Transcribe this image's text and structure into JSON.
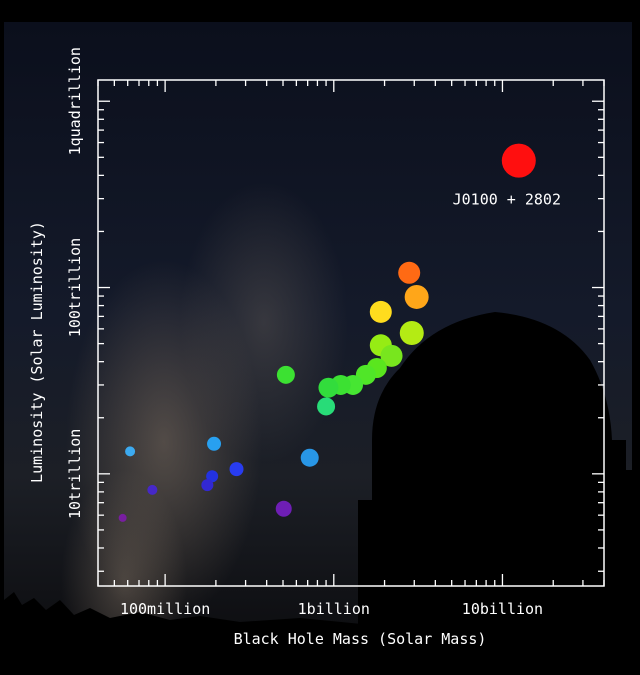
{
  "chart_data": {
    "type": "scatter",
    "xlabel": "Black Hole Mass (Solar Mass)",
    "ylabel": "Luminosity (Solar Luminosity)",
    "x_scale": "log",
    "y_scale": "log",
    "xlim": [
      40000000,
      40000000000
    ],
    "ylim": [
      2500000000000,
      1300000000000000
    ],
    "x_ticks": [
      {
        "value": 100000000,
        "label": "100million"
      },
      {
        "value": 1000000000,
        "label": "1billion"
      },
      {
        "value": 10000000000,
        "label": "10billion"
      }
    ],
    "y_ticks": [
      {
        "value": 10000000000000,
        "label": "10trillion"
      },
      {
        "value": 100000000000000,
        "label": "100trillion"
      },
      {
        "value": 1000000000000000,
        "label": "1quadrillion"
      }
    ],
    "annotations": [
      {
        "text": "J0100 + 2802",
        "x": 12500000000,
        "y": 480000000000000
      }
    ],
    "points": [
      {
        "x": 12500000000,
        "y": 480000000000000,
        "size": 17,
        "color": "#ff0f0f"
      },
      {
        "x": 2800000000,
        "y": 120000000000000,
        "size": 11,
        "color": "#ff6a14"
      },
      {
        "x": 3100000000,
        "y": 89000000000000,
        "size": 12,
        "color": "#ffa619"
      },
      {
        "x": 1900000000,
        "y": 74000000000000,
        "size": 11,
        "color": "#ffdc1e"
      },
      {
        "x": 2900000000,
        "y": 57000000000000,
        "size": 12,
        "color": "#b4eb14"
      },
      {
        "x": 1900000000,
        "y": 49000000000000,
        "size": 11,
        "color": "#96ec14"
      },
      {
        "x": 2200000000,
        "y": 43000000000000,
        "size": 11,
        "color": "#78e61e"
      },
      {
        "x": 1800000000,
        "y": 37000000000000,
        "size": 10,
        "color": "#5ae61e"
      },
      {
        "x": 1550000000,
        "y": 34000000000000,
        "size": 10,
        "color": "#50e628"
      },
      {
        "x": 1300000000,
        "y": 30000000000000,
        "size": 10,
        "color": "#46e632"
      },
      {
        "x": 1100000000,
        "y": 30000000000000,
        "size": 10,
        "color": "#3ce132"
      },
      {
        "x": 930000000,
        "y": 29000000000000,
        "size": 10,
        "color": "#32dc3c"
      },
      {
        "x": 520000000,
        "y": 34000000000000,
        "size": 9,
        "color": "#3ce132"
      },
      {
        "x": 900000000,
        "y": 23000000000000,
        "size": 9,
        "color": "#28dc78"
      },
      {
        "x": 720000000,
        "y": 12200000000000,
        "size": 9,
        "color": "#2896e6"
      },
      {
        "x": 195000000,
        "y": 14500000000000,
        "size": 7,
        "color": "#28a0f0"
      },
      {
        "x": 62000000,
        "y": 13200000000000,
        "size": 5,
        "color": "#3caaf0"
      },
      {
        "x": 265000000,
        "y": 10600000000000,
        "size": 7,
        "color": "#283cf0"
      },
      {
        "x": 190000000,
        "y": 9700000000000,
        "size": 6,
        "color": "#2332e1"
      },
      {
        "x": 178000000,
        "y": 8700000000000,
        "size": 6,
        "color": "#3228d2"
      },
      {
        "x": 84000000,
        "y": 8200000000000,
        "size": 5,
        "color": "#4628c8"
      },
      {
        "x": 505000000,
        "y": 6500000000000,
        "size": 8,
        "color": "#6e1eb4"
      },
      {
        "x": 56000000,
        "y": 5800000000000,
        "size": 4,
        "color": "#781ea0"
      }
    ]
  }
}
